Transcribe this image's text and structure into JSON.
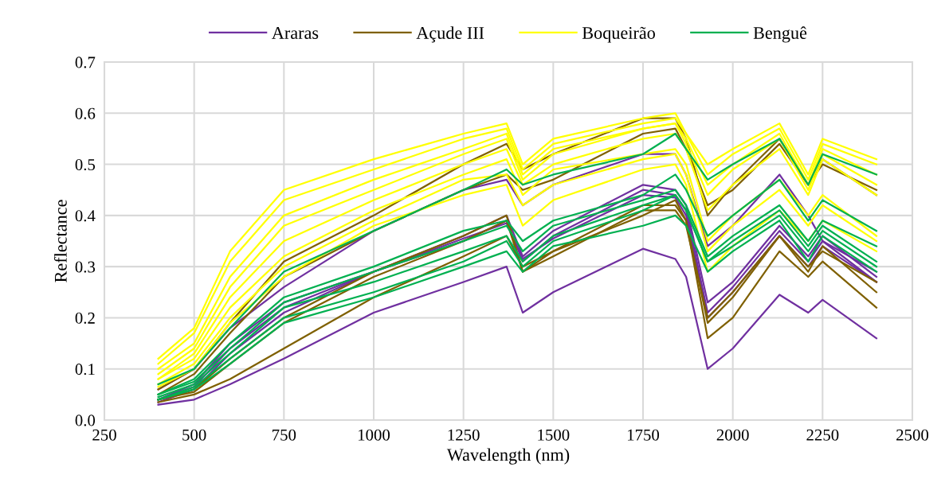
{
  "chart_data": {
    "type": "line",
    "xlabel": "Wavelength (nm)",
    "ylabel": "Reflectance",
    "x": [
      400,
      500,
      600,
      750,
      1000,
      1250,
      1370,
      1415,
      1500,
      1750,
      1840,
      1870,
      1930,
      2000,
      2130,
      2210,
      2250,
      2400
    ],
    "xlim": [
      250,
      2500
    ],
    "xticks": [
      250,
      500,
      750,
      1000,
      1250,
      1500,
      1750,
      2000,
      2250,
      2500
    ],
    "ylim": [
      0,
      0.7
    ],
    "yticks": [
      {
        "value": 0,
        "label": "0.0"
      },
      {
        "value": 0.1,
        "label": "0.1"
      },
      {
        "value": 0.2,
        "label": "0.2"
      },
      {
        "value": 0.3,
        "label": "0.3"
      },
      {
        "value": 0.4,
        "label": "0.4"
      },
      {
        "value": 0.5,
        "label": "0.5"
      },
      {
        "value": 0.6,
        "label": "0.6"
      },
      {
        "value": 0.7,
        "label": "0.7"
      }
    ],
    "grid": true,
    "legend": "top",
    "marker": "none",
    "line_style": "solid",
    "series": [
      {
        "name": "Araras",
        "color": "#7030a0",
        "values": [
          0.03,
          0.04,
          0.07,
          0.12,
          0.21,
          0.27,
          0.3,
          0.21,
          0.25,
          0.335,
          0.315,
          0.28,
          0.1,
          0.14,
          0.245,
          0.21,
          0.235,
          0.16
        ]
      },
      {
        "color": "#7030a0",
        "values": [
          0.06,
          0.1,
          0.18,
          0.26,
          0.37,
          0.45,
          0.47,
          0.42,
          0.46,
          0.52,
          0.52,
          0.48,
          0.34,
          0.38,
          0.48,
          0.4,
          0.35,
          0.29
        ]
      },
      {
        "color": "#7030a0",
        "values": [
          0.04,
          0.07,
          0.15,
          0.23,
          0.29,
          0.36,
          0.4,
          0.32,
          0.37,
          0.46,
          0.45,
          0.42,
          0.23,
          0.27,
          0.38,
          0.32,
          0.36,
          0.28
        ]
      },
      {
        "color": "#7030a0",
        "values": [
          0.035,
          0.06,
          0.13,
          0.21,
          0.29,
          0.35,
          0.39,
          0.31,
          0.36,
          0.45,
          0.44,
          0.41,
          0.21,
          0.26,
          0.37,
          0.31,
          0.35,
          0.27
        ]
      },
      {
        "color": "#7030a0",
        "values": [
          0.04,
          0.065,
          0.14,
          0.22,
          0.29,
          0.355,
          0.385,
          0.315,
          0.355,
          0.44,
          0.435,
          0.4,
          0.2,
          0.25,
          0.36,
          0.3,
          0.34,
          0.27
        ]
      },
      {
        "name": "Açude III",
        "color": "#7f6000",
        "values": [
          0.06,
          0.1,
          0.19,
          0.31,
          0.4,
          0.5,
          0.54,
          0.49,
          0.52,
          0.59,
          0.59,
          0.55,
          0.4,
          0.46,
          0.55,
          0.46,
          0.51,
          0.44
        ]
      },
      {
        "color": "#7f6000",
        "values": [
          0.05,
          0.09,
          0.17,
          0.28,
          0.37,
          0.45,
          0.48,
          0.45,
          0.47,
          0.56,
          0.57,
          0.53,
          0.42,
          0.45,
          0.54,
          0.46,
          0.5,
          0.45
        ]
      },
      {
        "color": "#7f6000",
        "values": [
          0.04,
          0.06,
          0.12,
          0.2,
          0.29,
          0.36,
          0.4,
          0.29,
          0.33,
          0.42,
          0.42,
          0.39,
          0.19,
          0.24,
          0.36,
          0.29,
          0.34,
          0.25
        ]
      },
      {
        "color": "#7f6000",
        "values": [
          0.04,
          0.055,
          0.11,
          0.19,
          0.28,
          0.35,
          0.39,
          0.29,
          0.32,
          0.41,
          0.41,
          0.38,
          0.2,
          0.25,
          0.36,
          0.3,
          0.33,
          0.27
        ]
      },
      {
        "color": "#7f6000",
        "values": [
          0.035,
          0.05,
          0.08,
          0.14,
          0.24,
          0.32,
          0.36,
          0.3,
          0.33,
          0.4,
          0.43,
          0.39,
          0.16,
          0.2,
          0.33,
          0.28,
          0.31,
          0.22
        ]
      },
      {
        "name": "Boqueirão",
        "color": "#ffff00",
        "values": [
          0.12,
          0.18,
          0.33,
          0.45,
          0.51,
          0.56,
          0.58,
          0.5,
          0.55,
          0.59,
          0.6,
          0.56,
          0.5,
          0.53,
          0.58,
          0.48,
          0.55,
          0.51
        ]
      },
      {
        "color": "#ffff00",
        "values": [
          0.11,
          0.17,
          0.31,
          0.43,
          0.49,
          0.55,
          0.57,
          0.49,
          0.54,
          0.58,
          0.59,
          0.56,
          0.48,
          0.52,
          0.57,
          0.47,
          0.54,
          0.5
        ]
      },
      {
        "color": "#ffff00",
        "values": [
          0.1,
          0.15,
          0.28,
          0.4,
          0.47,
          0.53,
          0.56,
          0.48,
          0.53,
          0.57,
          0.58,
          0.55,
          0.46,
          0.5,
          0.56,
          0.46,
          0.53,
          0.48
        ]
      },
      {
        "color": "#ffff00",
        "values": [
          0.09,
          0.14,
          0.26,
          0.38,
          0.45,
          0.52,
          0.55,
          0.47,
          0.52,
          0.57,
          0.58,
          0.54,
          0.44,
          0.49,
          0.55,
          0.45,
          0.52,
          0.46
        ]
      },
      {
        "color": "#ffff00",
        "values": [
          0.08,
          0.13,
          0.24,
          0.35,
          0.43,
          0.5,
          0.53,
          0.46,
          0.5,
          0.55,
          0.56,
          0.53,
          0.41,
          0.46,
          0.53,
          0.44,
          0.51,
          0.44
        ]
      },
      {
        "color": "#ffff00",
        "values": [
          0.08,
          0.12,
          0.22,
          0.32,
          0.41,
          0.48,
          0.51,
          0.44,
          0.49,
          0.52,
          0.53,
          0.5,
          0.35,
          0.4,
          0.47,
          0.4,
          0.44,
          0.36
        ]
      },
      {
        "color": "#ffff00",
        "values": [
          0.07,
          0.11,
          0.2,
          0.3,
          0.39,
          0.47,
          0.48,
          0.42,
          0.46,
          0.51,
          0.52,
          0.48,
          0.33,
          0.38,
          0.45,
          0.38,
          0.42,
          0.35
        ]
      },
      {
        "color": "#ffff00",
        "values": [
          0.065,
          0.1,
          0.19,
          0.28,
          0.38,
          0.44,
          0.46,
          0.38,
          0.43,
          0.49,
          0.5,
          0.46,
          0.29,
          0.34,
          0.41,
          0.35,
          0.39,
          0.33
        ]
      },
      {
        "name": "Benguê",
        "color": "#00b050",
        "values": [
          0.07,
          0.1,
          0.18,
          0.29,
          0.37,
          0.45,
          0.49,
          0.46,
          0.48,
          0.52,
          0.56,
          0.53,
          0.47,
          0.5,
          0.55,
          0.46,
          0.52,
          0.48
        ]
      },
      {
        "color": "#00b050",
        "values": [
          0.05,
          0.08,
          0.15,
          0.24,
          0.3,
          0.37,
          0.39,
          0.35,
          0.39,
          0.44,
          0.48,
          0.45,
          0.36,
          0.4,
          0.47,
          0.39,
          0.43,
          0.37
        ]
      },
      {
        "color": "#00b050",
        "values": [
          0.05,
          0.075,
          0.14,
          0.23,
          0.29,
          0.35,
          0.38,
          0.33,
          0.38,
          0.43,
          0.45,
          0.42,
          0.32,
          0.36,
          0.42,
          0.35,
          0.39,
          0.34
        ]
      },
      {
        "color": "#00b050",
        "values": [
          0.045,
          0.07,
          0.13,
          0.22,
          0.27,
          0.33,
          0.36,
          0.31,
          0.36,
          0.42,
          0.44,
          0.41,
          0.31,
          0.35,
          0.41,
          0.34,
          0.38,
          0.31
        ]
      },
      {
        "color": "#00b050",
        "values": [
          0.04,
          0.065,
          0.12,
          0.2,
          0.25,
          0.31,
          0.35,
          0.3,
          0.35,
          0.41,
          0.44,
          0.41,
          0.31,
          0.34,
          0.4,
          0.33,
          0.37,
          0.3
        ]
      },
      {
        "color": "#00b050",
        "values": [
          0.04,
          0.06,
          0.11,
          0.19,
          0.24,
          0.3,
          0.33,
          0.29,
          0.34,
          0.38,
          0.4,
          0.38,
          0.29,
          0.33,
          0.39,
          0.31,
          0.36,
          0.29
        ]
      }
    ]
  }
}
